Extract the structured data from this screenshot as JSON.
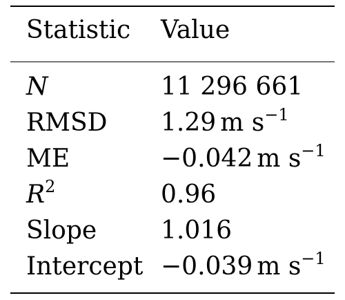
{
  "table": {
    "headers": {
      "statistic": "Statistic",
      "value": "Value"
    },
    "rows": [
      {
        "statistic": "N",
        "value": "11 296 661"
      },
      {
        "statistic": "RMSD",
        "value": "1.29",
        "unit": "m s",
        "unit_exp": "−1"
      },
      {
        "statistic": "ME",
        "value": "−0.042",
        "unit": "m s",
        "unit_exp": "−1"
      },
      {
        "statistic": "R",
        "statistic_exp": "2",
        "value": "0.96"
      },
      {
        "statistic": "Slope",
        "value": "1.016"
      },
      {
        "statistic": "Intercept",
        "value": "−0.039",
        "unit": "m s",
        "unit_exp": "−1"
      }
    ]
  }
}
